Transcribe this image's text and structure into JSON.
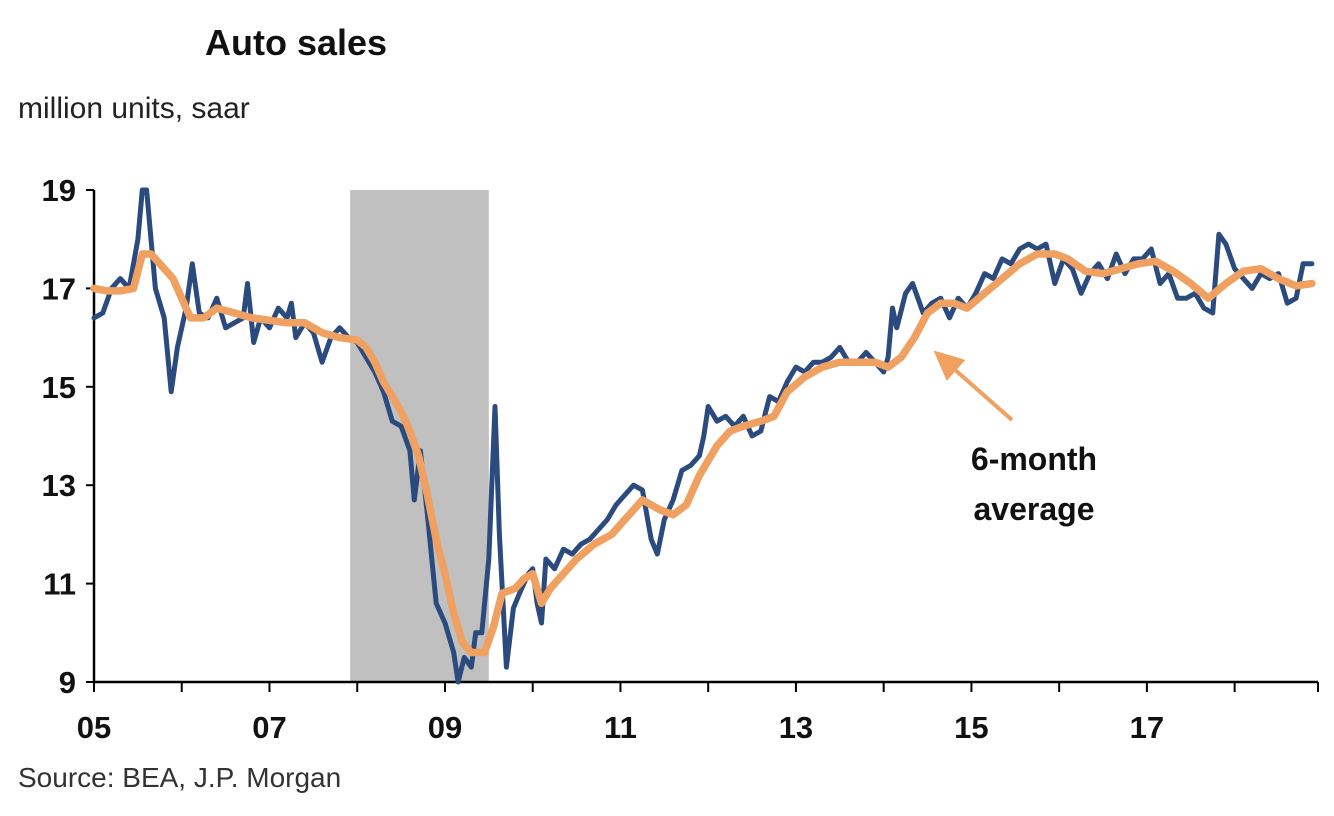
{
  "chart_data": {
    "type": "line",
    "title": "Auto sales",
    "subtitle": "million units, saar",
    "source": "Source: BEA, J.P. Morgan",
    "xlabel": "",
    "ylabel": "",
    "xlim": [
      2005.0,
      2018.95
    ],
    "ylim": [
      9,
      19
    ],
    "x_ticks": [
      2005,
      2006,
      2007,
      2008,
      2009,
      2010,
      2011,
      2012,
      2013,
      2014,
      2015,
      2016,
      2017,
      2018
    ],
    "x_tick_labels": [
      {
        "x": 2005,
        "label": "05"
      },
      {
        "x": 2007,
        "label": "07"
      },
      {
        "x": 2009,
        "label": "09"
      },
      {
        "x": 2011,
        "label": "11"
      },
      {
        "x": 2013,
        "label": "13"
      },
      {
        "x": 2015,
        "label": "15"
      },
      {
        "x": 2017,
        "label": "17"
      }
    ],
    "y_ticks": [
      9,
      11,
      13,
      15,
      17,
      19
    ],
    "grid": false,
    "legend": "none",
    "recession_shading": {
      "start": 2007.92,
      "end": 2009.5,
      "color": "#c0c0c0"
    },
    "annotation": {
      "text_lines": [
        "6-month",
        "average"
      ],
      "arrow_target": {
        "x": 2014.5,
        "y": 15.9
      }
    },
    "series": [
      {
        "color": "#2b4a7e",
        "points": [
          [
            2005.0,
            16.4
          ],
          [
            2005.1,
            16.5
          ],
          [
            2005.2,
            17.0
          ],
          [
            2005.3,
            17.2
          ],
          [
            2005.4,
            17.0
          ],
          [
            2005.5,
            18.0
          ],
          [
            2005.55,
            19.0
          ],
          [
            2005.6,
            19.0
          ],
          [
            2005.65,
            18.0
          ],
          [
            2005.7,
            17.0
          ],
          [
            2005.8,
            16.4
          ],
          [
            2005.88,
            14.9
          ],
          [
            2005.95,
            15.8
          ],
          [
            2006.05,
            16.6
          ],
          [
            2006.12,
            17.5
          ],
          [
            2006.2,
            16.5
          ],
          [
            2006.3,
            16.4
          ],
          [
            2006.4,
            16.8
          ],
          [
            2006.5,
            16.2
          ],
          [
            2006.6,
            16.3
          ],
          [
            2006.7,
            16.4
          ],
          [
            2006.75,
            17.1
          ],
          [
            2006.82,
            15.9
          ],
          [
            2006.9,
            16.4
          ],
          [
            2007.0,
            16.2
          ],
          [
            2007.1,
            16.6
          ],
          [
            2007.2,
            16.4
          ],
          [
            2007.25,
            16.7
          ],
          [
            2007.3,
            16.0
          ],
          [
            2007.4,
            16.3
          ],
          [
            2007.5,
            16.1
          ],
          [
            2007.6,
            15.5
          ],
          [
            2007.7,
            16.0
          ],
          [
            2007.8,
            16.2
          ],
          [
            2007.9,
            16.0
          ],
          [
            2008.0,
            15.9
          ],
          [
            2008.1,
            15.6
          ],
          [
            2008.2,
            15.3
          ],
          [
            2008.3,
            14.9
          ],
          [
            2008.4,
            14.3
          ],
          [
            2008.5,
            14.2
          ],
          [
            2008.6,
            13.7
          ],
          [
            2008.65,
            12.7
          ],
          [
            2008.72,
            13.7
          ],
          [
            2008.8,
            12.4
          ],
          [
            2008.9,
            10.6
          ],
          [
            2009.0,
            10.2
          ],
          [
            2009.1,
            9.6
          ],
          [
            2009.15,
            9.0
          ],
          [
            2009.22,
            9.5
          ],
          [
            2009.3,
            9.3
          ],
          [
            2009.35,
            10.0
          ],
          [
            2009.42,
            10.0
          ],
          [
            2009.5,
            11.5
          ],
          [
            2009.57,
            14.6
          ],
          [
            2009.62,
            12.0
          ],
          [
            2009.7,
            9.3
          ],
          [
            2009.78,
            10.5
          ],
          [
            2009.85,
            10.8
          ],
          [
            2009.95,
            11.2
          ],
          [
            2010.0,
            11.3
          ],
          [
            2010.05,
            10.6
          ],
          [
            2010.1,
            10.2
          ],
          [
            2010.15,
            11.5
          ],
          [
            2010.25,
            11.3
          ],
          [
            2010.35,
            11.7
          ],
          [
            2010.45,
            11.6
          ],
          [
            2010.55,
            11.8
          ],
          [
            2010.65,
            11.9
          ],
          [
            2010.75,
            12.1
          ],
          [
            2010.85,
            12.3
          ],
          [
            2010.95,
            12.6
          ],
          [
            2011.05,
            12.8
          ],
          [
            2011.15,
            13.0
          ],
          [
            2011.25,
            12.9
          ],
          [
            2011.35,
            11.9
          ],
          [
            2011.42,
            11.6
          ],
          [
            2011.5,
            12.3
          ],
          [
            2011.6,
            12.7
          ],
          [
            2011.7,
            13.3
          ],
          [
            2011.8,
            13.4
          ],
          [
            2011.9,
            13.6
          ],
          [
            2011.95,
            14.0
          ],
          [
            2012.0,
            14.6
          ],
          [
            2012.1,
            14.3
          ],
          [
            2012.2,
            14.4
          ],
          [
            2012.3,
            14.2
          ],
          [
            2012.4,
            14.4
          ],
          [
            2012.5,
            14.0
          ],
          [
            2012.6,
            14.1
          ],
          [
            2012.7,
            14.8
          ],
          [
            2012.8,
            14.7
          ],
          [
            2012.9,
            15.1
          ],
          [
            2013.0,
            15.4
          ],
          [
            2013.1,
            15.3
          ],
          [
            2013.2,
            15.5
          ],
          [
            2013.3,
            15.5
          ],
          [
            2013.4,
            15.6
          ],
          [
            2013.5,
            15.8
          ],
          [
            2013.6,
            15.5
          ],
          [
            2013.7,
            15.5
          ],
          [
            2013.8,
            15.7
          ],
          [
            2013.9,
            15.5
          ],
          [
            2014.0,
            15.3
          ],
          [
            2014.05,
            15.6
          ],
          [
            2014.1,
            16.6
          ],
          [
            2014.15,
            16.2
          ],
          [
            2014.25,
            16.9
          ],
          [
            2014.33,
            17.1
          ],
          [
            2014.45,
            16.5
          ],
          [
            2014.55,
            16.7
          ],
          [
            2014.65,
            16.8
          ],
          [
            2014.75,
            16.4
          ],
          [
            2014.85,
            16.8
          ],
          [
            2014.95,
            16.6
          ],
          [
            2015.05,
            16.9
          ],
          [
            2015.15,
            17.3
          ],
          [
            2015.25,
            17.2
          ],
          [
            2015.35,
            17.6
          ],
          [
            2015.45,
            17.5
          ],
          [
            2015.55,
            17.8
          ],
          [
            2015.65,
            17.9
          ],
          [
            2015.75,
            17.8
          ],
          [
            2015.85,
            17.9
          ],
          [
            2015.95,
            17.1
          ],
          [
            2016.05,
            17.6
          ],
          [
            2016.15,
            17.4
          ],
          [
            2016.25,
            16.9
          ],
          [
            2016.35,
            17.3
          ],
          [
            2016.45,
            17.5
          ],
          [
            2016.55,
            17.2
          ],
          [
            2016.65,
            17.7
          ],
          [
            2016.75,
            17.3
          ],
          [
            2016.85,
            17.6
          ],
          [
            2016.95,
            17.6
          ],
          [
            2017.05,
            17.8
          ],
          [
            2017.15,
            17.1
          ],
          [
            2017.25,
            17.3
          ],
          [
            2017.35,
            16.8
          ],
          [
            2017.45,
            16.8
          ],
          [
            2017.55,
            16.9
          ],
          [
            2017.65,
            16.6
          ],
          [
            2017.75,
            16.5
          ],
          [
            2017.82,
            18.1
          ],
          [
            2017.9,
            17.9
          ],
          [
            2018.0,
            17.4
          ],
          [
            2018.1,
            17.2
          ],
          [
            2018.2,
            17.0
          ],
          [
            2018.3,
            17.3
          ],
          [
            2018.4,
            17.2
          ],
          [
            2018.5,
            17.3
          ],
          [
            2018.6,
            16.7
          ],
          [
            2018.7,
            16.8
          ],
          [
            2018.78,
            17.5
          ],
          [
            2018.88,
            17.5
          ]
        ]
      },
      {
        "name": "6-month average",
        "color": "#f0a060",
        "points": [
          [
            2005.0,
            17.0
          ],
          [
            2005.15,
            16.95
          ],
          [
            2005.3,
            16.95
          ],
          [
            2005.45,
            17.0
          ],
          [
            2005.55,
            17.7
          ],
          [
            2005.65,
            17.7
          ],
          [
            2005.75,
            17.5
          ],
          [
            2005.9,
            17.2
          ],
          [
            2006.0,
            16.8
          ],
          [
            2006.1,
            16.4
          ],
          [
            2006.25,
            16.4
          ],
          [
            2006.4,
            16.6
          ],
          [
            2006.6,
            16.5
          ],
          [
            2006.8,
            16.4
          ],
          [
            2007.0,
            16.35
          ],
          [
            2007.2,
            16.3
          ],
          [
            2007.4,
            16.3
          ],
          [
            2007.6,
            16.1
          ],
          [
            2007.8,
            16.0
          ],
          [
            2008.0,
            15.95
          ],
          [
            2008.1,
            15.8
          ],
          [
            2008.2,
            15.5
          ],
          [
            2008.3,
            15.1
          ],
          [
            2008.5,
            14.5
          ],
          [
            2008.6,
            14.1
          ],
          [
            2008.7,
            13.6
          ],
          [
            2008.8,
            12.8
          ],
          [
            2008.9,
            11.9
          ],
          [
            2009.0,
            11.2
          ],
          [
            2009.1,
            10.4
          ],
          [
            2009.2,
            9.8
          ],
          [
            2009.3,
            9.6
          ],
          [
            2009.45,
            9.6
          ],
          [
            2009.55,
            10.1
          ],
          [
            2009.65,
            10.8
          ],
          [
            2009.8,
            10.9
          ],
          [
            2009.9,
            11.1
          ],
          [
            2010.0,
            11.2
          ],
          [
            2010.1,
            10.6
          ],
          [
            2010.2,
            10.9
          ],
          [
            2010.35,
            11.2
          ],
          [
            2010.5,
            11.5
          ],
          [
            2010.7,
            11.8
          ],
          [
            2010.9,
            12.0
          ],
          [
            2011.1,
            12.4
          ],
          [
            2011.25,
            12.7
          ],
          [
            2011.45,
            12.5
          ],
          [
            2011.6,
            12.4
          ],
          [
            2011.75,
            12.6
          ],
          [
            2011.9,
            13.2
          ],
          [
            2012.1,
            13.8
          ],
          [
            2012.25,
            14.1
          ],
          [
            2012.4,
            14.2
          ],
          [
            2012.6,
            14.3
          ],
          [
            2012.75,
            14.4
          ],
          [
            2012.9,
            14.9
          ],
          [
            2013.1,
            15.2
          ],
          [
            2013.3,
            15.4
          ],
          [
            2013.5,
            15.5
          ],
          [
            2013.7,
            15.5
          ],
          [
            2013.9,
            15.5
          ],
          [
            2014.05,
            15.4
          ],
          [
            2014.2,
            15.6
          ],
          [
            2014.35,
            16.0
          ],
          [
            2014.5,
            16.5
          ],
          [
            2014.65,
            16.7
          ],
          [
            2014.8,
            16.7
          ],
          [
            2014.95,
            16.6
          ],
          [
            2015.15,
            16.9
          ],
          [
            2015.35,
            17.2
          ],
          [
            2015.55,
            17.5
          ],
          [
            2015.75,
            17.7
          ],
          [
            2015.95,
            17.7
          ],
          [
            2016.1,
            17.6
          ],
          [
            2016.3,
            17.35
          ],
          [
            2016.5,
            17.3
          ],
          [
            2016.7,
            17.4
          ],
          [
            2016.9,
            17.5
          ],
          [
            2017.1,
            17.55
          ],
          [
            2017.3,
            17.35
          ],
          [
            2017.5,
            17.1
          ],
          [
            2017.7,
            16.8
          ],
          [
            2017.9,
            17.1
          ],
          [
            2018.1,
            17.35
          ],
          [
            2018.3,
            17.4
          ],
          [
            2018.5,
            17.2
          ],
          [
            2018.7,
            17.05
          ],
          [
            2018.88,
            17.1
          ]
        ]
      }
    ]
  }
}
